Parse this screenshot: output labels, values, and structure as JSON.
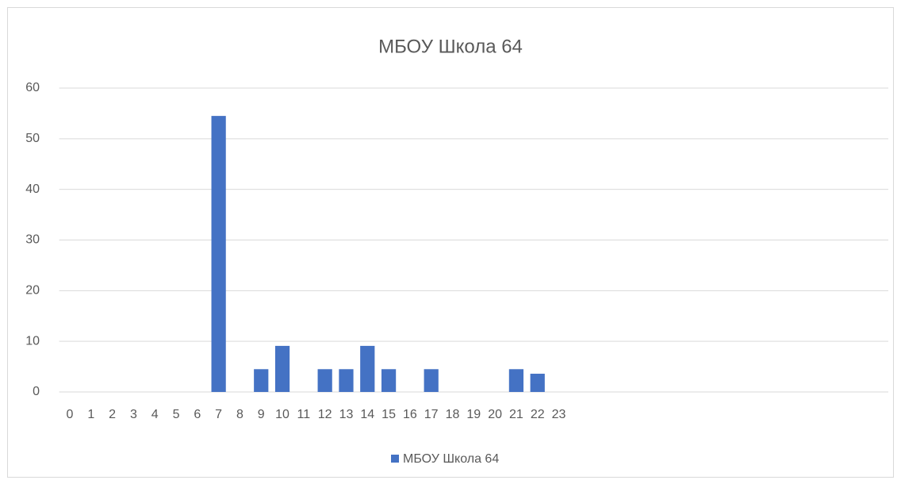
{
  "chart_data": {
    "type": "bar",
    "title": "МБОУ Школа 64",
    "categories": [
      0,
      1,
      2,
      3,
      4,
      5,
      6,
      7,
      8,
      9,
      10,
      11,
      12,
      13,
      14,
      15,
      16,
      17,
      18,
      19,
      20,
      21,
      22,
      23,
      null,
      null,
      null,
      null,
      null,
      null,
      null,
      null,
      null,
      null,
      null,
      null,
      null,
      null,
      null
    ],
    "series": [
      {
        "name": "МБОУ Школа 64",
        "color": "#4472c4",
        "values": [
          0,
          0,
          0,
          0,
          0,
          0,
          0,
          54.5,
          0,
          4.5,
          9.1,
          0,
          4.5,
          4.5,
          9.1,
          4.5,
          0,
          4.5,
          0,
          0,
          0,
          4.5,
          3.6,
          0,
          null,
          null,
          null,
          null,
          null,
          null,
          null,
          null,
          null,
          null,
          null,
          null,
          null,
          null,
          null
        ]
      }
    ],
    "ylim": [
      0,
      60
    ],
    "yticks": [
      0,
      10,
      20,
      30,
      40,
      50,
      60
    ],
    "grid": true,
    "legend": "bottom"
  }
}
